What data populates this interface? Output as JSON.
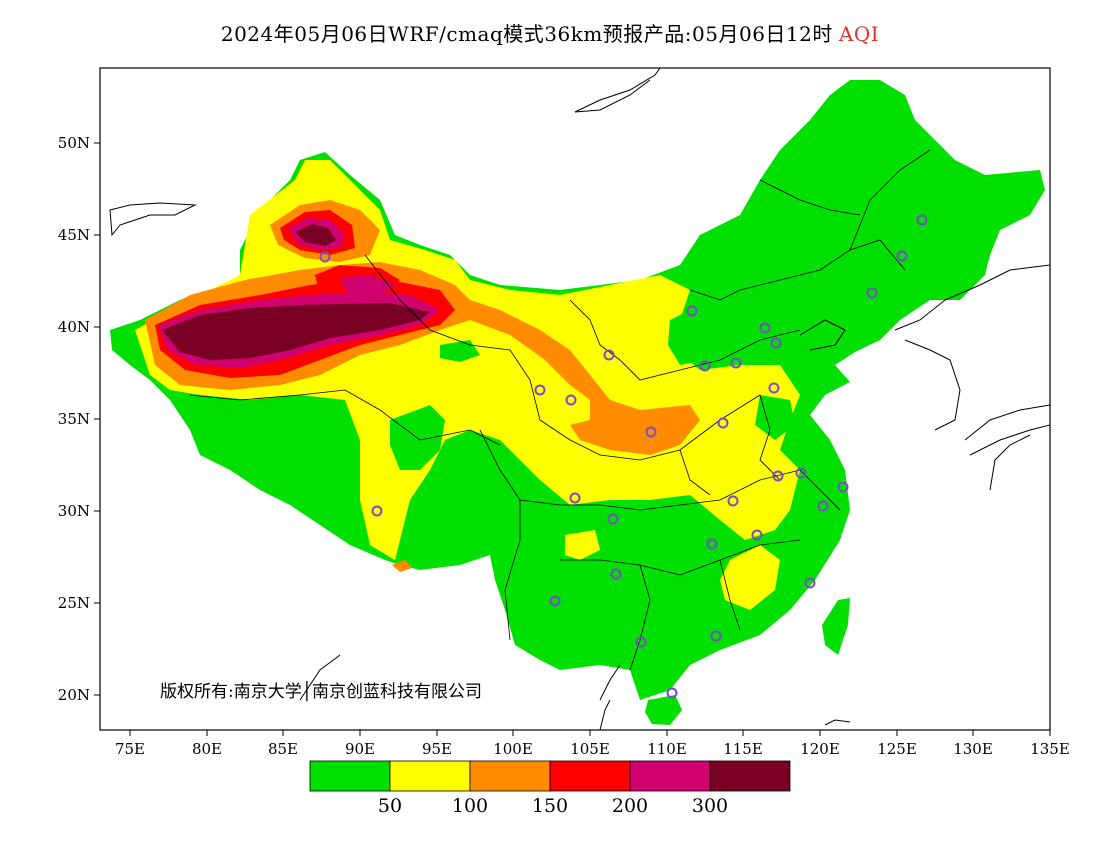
{
  "title": {
    "main": "2024年05月06日WRF/cmaq模式36km预报产品:05月06日12时",
    "variable": "AQI",
    "variable_color": "#e03030"
  },
  "axes": {
    "longitude_ticks": [
      "75E",
      "80E",
      "85E",
      "90E",
      "95E",
      "100E",
      "105E",
      "110E",
      "115E",
      "120E",
      "125E",
      "130E",
      "135E"
    ],
    "latitude_ticks": [
      "50N",
      "45N",
      "40N",
      "35N",
      "30N",
      "25N",
      "20N"
    ]
  },
  "copyright": "版权所有:南京大学│南京创蓝科技有限公司",
  "legend": {
    "colors": [
      "#00e000",
      "#ffff00",
      "#ff8c00",
      "#ff0000",
      "#d0006f",
      "#7a0023"
    ],
    "thresholds": [
      "50",
      "100",
      "150",
      "200",
      "300"
    ]
  },
  "map_colors": {
    "good": "#00e000",
    "moderate": "#ffff00",
    "unhealthy_sensitive": "#ff8c00",
    "unhealthy": "#ff0000",
    "very_unhealthy": "#d0006f",
    "hazardous": "#7a0023",
    "city_marker": "#7a4cc8"
  }
}
